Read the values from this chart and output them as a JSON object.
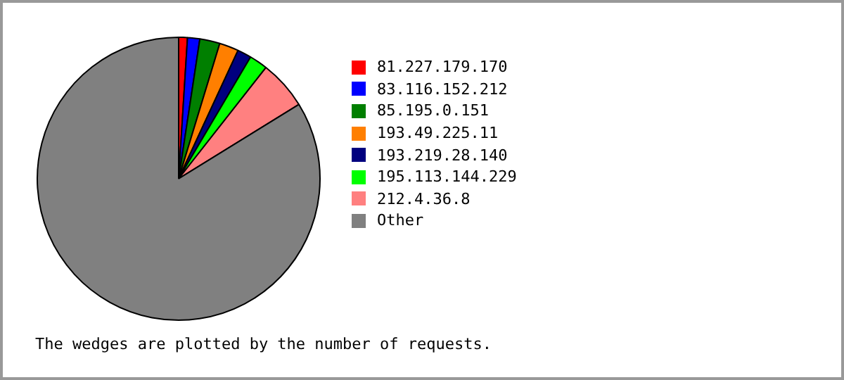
{
  "chart_data": {
    "type": "pie",
    "categories": [
      "81.227.179.170",
      "83.116.152.212",
      "85.195.0.151",
      "193.49.225.11",
      "193.219.28.140",
      "195.113.144.229",
      "212.4.36.8",
      "Other"
    ],
    "values": [
      1.0,
      1.4,
      2.3,
      2.2,
      1.6,
      2.1,
      5.6,
      83.8
    ],
    "colors": [
      "#ff0000",
      "#0000ff",
      "#007f00",
      "#ff7f00",
      "#00007f",
      "#00ff00",
      "#ff8080",
      "#808080"
    ],
    "legend": "right",
    "annotations": [
      "The wedges are plotted by the number of requests."
    ]
  }
}
